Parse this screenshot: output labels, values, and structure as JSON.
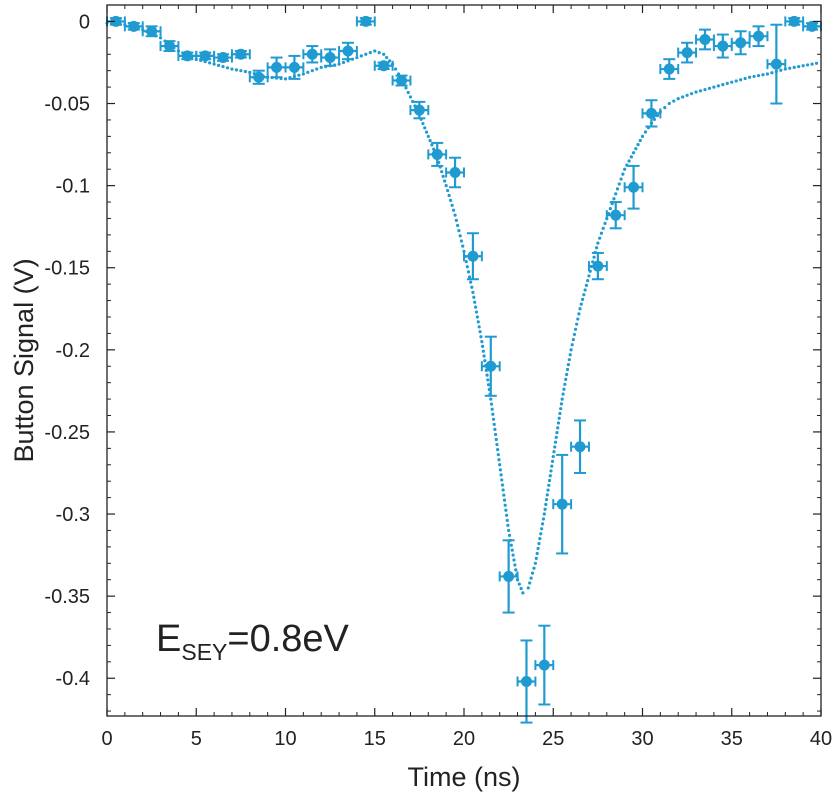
{
  "chart_data": {
    "type": "scatter",
    "title": "",
    "xlabel": "Time (ns)",
    "ylabel": "Button Signal (V)",
    "xlim": [
      0,
      40
    ],
    "ylim": [
      -0.423,
      0.01
    ],
    "xticks": [
      0,
      5,
      10,
      15,
      20,
      25,
      30,
      35,
      40
    ],
    "xtick_labels": [
      "0",
      "5",
      "10",
      "15",
      "20",
      "25",
      "30",
      "35",
      "40"
    ],
    "yticks": [
      0,
      -0.05,
      -0.1,
      -0.15,
      -0.2,
      -0.25,
      -0.3,
      -0.35,
      -0.4
    ],
    "ytick_labels": [
      "0",
      "-0.05",
      "-0.1",
      "-0.15",
      "-0.2",
      "-0.25",
      "-0.3",
      "-0.35",
      "-0.4"
    ],
    "grid": false,
    "color": "#1f9bd1",
    "annotation": {
      "main": "E",
      "sub": "SEY",
      "value": "=0.8eV"
    },
    "series": [
      {
        "kind": "measurement",
        "points": [
          {
            "x": 0.5,
            "y": 0.0,
            "xerr": 0.5,
            "yerr": 0.002
          },
          {
            "x": 1.5,
            "y": -0.003,
            "xerr": 0.5,
            "yerr": 0.002
          },
          {
            "x": 2.5,
            "y": -0.006,
            "xerr": 0.5,
            "yerr": 0.003
          },
          {
            "x": 3.5,
            "y": -0.015,
            "xerr": 0.5,
            "yerr": 0.003
          },
          {
            "x": 4.5,
            "y": -0.021,
            "xerr": 0.5,
            "yerr": 0.002
          },
          {
            "x": 5.5,
            "y": -0.021,
            "xerr": 0.5,
            "yerr": 0.002
          },
          {
            "x": 6.5,
            "y": -0.022,
            "xerr": 0.5,
            "yerr": 0.002
          },
          {
            "x": 7.5,
            "y": -0.02,
            "xerr": 0.5,
            "yerr": 0.002
          },
          {
            "x": 8.5,
            "y": -0.034,
            "xerr": 0.5,
            "yerr": 0.004
          },
          {
            "x": 9.5,
            "y": -0.028,
            "xerr": 0.5,
            "yerr": 0.006
          },
          {
            "x": 10.5,
            "y": -0.028,
            "xerr": 0.5,
            "yerr": 0.007
          },
          {
            "x": 11.5,
            "y": -0.02,
            "xerr": 0.5,
            "yerr": 0.005
          },
          {
            "x": 12.5,
            "y": -0.022,
            "xerr": 0.5,
            "yerr": 0.005
          },
          {
            "x": 13.5,
            "y": -0.018,
            "xerr": 0.5,
            "yerr": 0.005
          },
          {
            "x": 14.5,
            "y": 0.0,
            "xerr": 0.5,
            "yerr": 0.002
          },
          {
            "x": 15.5,
            "y": -0.027,
            "xerr": 0.5,
            "yerr": 0.002
          },
          {
            "x": 16.5,
            "y": -0.036,
            "xerr": 0.5,
            "yerr": 0.003
          },
          {
            "x": 17.5,
            "y": -0.054,
            "xerr": 0.5,
            "yerr": 0.005
          },
          {
            "x": 18.5,
            "y": -0.081,
            "xerr": 0.5,
            "yerr": 0.007
          },
          {
            "x": 19.5,
            "y": -0.092,
            "xerr": 0.5,
            "yerr": 0.009
          },
          {
            "x": 20.5,
            "y": -0.143,
            "xerr": 0.5,
            "yerr": 0.014
          },
          {
            "x": 21.5,
            "y": -0.21,
            "xerr": 0.5,
            "yerr": 0.018
          },
          {
            "x": 22.5,
            "y": -0.338,
            "xerr": 0.5,
            "yerr": 0.022
          },
          {
            "x": 23.5,
            "y": -0.402,
            "xerr": 0.5,
            "yerr": 0.025
          },
          {
            "x": 24.5,
            "y": -0.392,
            "xerr": 0.5,
            "yerr": 0.024
          },
          {
            "x": 25.5,
            "y": -0.294,
            "xerr": 0.5,
            "yerr": 0.03
          },
          {
            "x": 26.5,
            "y": -0.259,
            "xerr": 0.5,
            "yerr": 0.016
          },
          {
            "x": 27.5,
            "y": -0.149,
            "xerr": 0.5,
            "yerr": 0.008
          },
          {
            "x": 28.5,
            "y": -0.118,
            "xerr": 0.5,
            "yerr": 0.008
          },
          {
            "x": 29.5,
            "y": -0.101,
            "xerr": 0.5,
            "yerr": 0.013
          },
          {
            "x": 30.5,
            "y": -0.056,
            "xerr": 0.5,
            "yerr": 0.008
          },
          {
            "x": 31.5,
            "y": -0.029,
            "xerr": 0.5,
            "yerr": 0.006
          },
          {
            "x": 32.5,
            "y": -0.019,
            "xerr": 0.5,
            "yerr": 0.006
          },
          {
            "x": 33.5,
            "y": -0.011,
            "xerr": 0.5,
            "yerr": 0.006
          },
          {
            "x": 34.5,
            "y": -0.015,
            "xerr": 0.5,
            "yerr": 0.007
          },
          {
            "x": 35.5,
            "y": -0.013,
            "xerr": 0.5,
            "yerr": 0.007
          },
          {
            "x": 36.5,
            "y": -0.009,
            "xerr": 0.5,
            "yerr": 0.006
          },
          {
            "x": 37.5,
            "y": -0.026,
            "xerr": 0.5,
            "yerr": 0.024
          },
          {
            "x": 38.5,
            "y": 0.0,
            "xerr": 0.5,
            "yerr": 0.002
          },
          {
            "x": 39.5,
            "y": -0.003,
            "xerr": 0.5,
            "yerr": 0.002
          }
        ]
      },
      {
        "kind": "simulation",
        "x": [
          0.0,
          1.0,
          2.0,
          3.0,
          4.0,
          5.0,
          6.0,
          7.0,
          8.0,
          9.0,
          10.0,
          11.0,
          12.0,
          13.0,
          14.0,
          15.0,
          15.5,
          16.0,
          16.5,
          17.0,
          17.5,
          18.0,
          18.5,
          19.0,
          19.5,
          20.0,
          20.5,
          21.0,
          21.5,
          22.0,
          22.5,
          23.0,
          23.3,
          23.6,
          24.0,
          24.5,
          25.0,
          25.5,
          26.0,
          26.5,
          27.0,
          27.5,
          28.0,
          28.5,
          29.0,
          29.5,
          30.0,
          30.5,
          31.0,
          31.5,
          32.0,
          33.0,
          34.0,
          35.0,
          36.0,
          37.0,
          38.0,
          39.0,
          40.0
        ],
        "y": [
          -0.001,
          -0.002,
          -0.005,
          -0.01,
          -0.018,
          -0.023,
          -0.026,
          -0.029,
          -0.031,
          -0.034,
          -0.035,
          -0.032,
          -0.028,
          -0.026,
          -0.022,
          -0.018,
          -0.02,
          -0.026,
          -0.035,
          -0.046,
          -0.057,
          -0.07,
          -0.083,
          -0.1,
          -0.118,
          -0.14,
          -0.165,
          -0.195,
          -0.23,
          -0.27,
          -0.31,
          -0.34,
          -0.348,
          -0.345,
          -0.33,
          -0.3,
          -0.265,
          -0.23,
          -0.2,
          -0.175,
          -0.155,
          -0.135,
          -0.12,
          -0.105,
          -0.09,
          -0.08,
          -0.07,
          -0.062,
          -0.055,
          -0.05,
          -0.047,
          -0.043,
          -0.04,
          -0.037,
          -0.034,
          -0.032,
          -0.029,
          -0.027,
          -0.025
        ]
      }
    ]
  }
}
